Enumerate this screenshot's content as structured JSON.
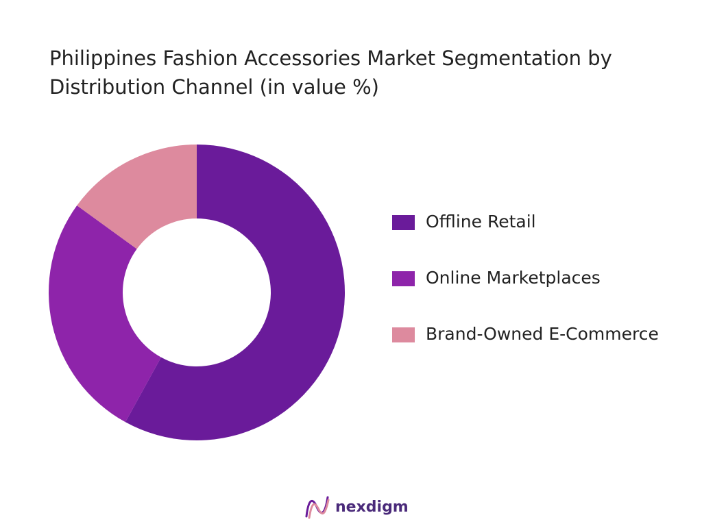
{
  "chart_data": {
    "type": "donut",
    "title": "Philippines Fashion Accessories Market Segmentation by Distribution Channel (in value %)",
    "categories": [
      "Offline Retail",
      "Online Marketplaces",
      "Brand-Owned E-Commerce"
    ],
    "values": [
      58,
      27,
      15
    ],
    "colors": [
      "#6a1b9a",
      "#8e24aa",
      "#dd8a9e"
    ]
  },
  "footer": {
    "brand": "nexdigm"
  }
}
